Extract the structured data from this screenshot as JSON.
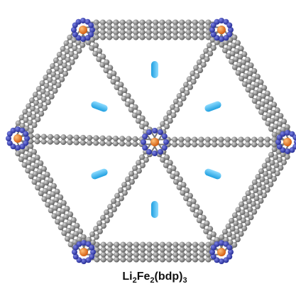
{
  "caption": [
    "Li",
    "2",
    "Fe",
    "2",
    "(bdp)",
    "3"
  ]
}
